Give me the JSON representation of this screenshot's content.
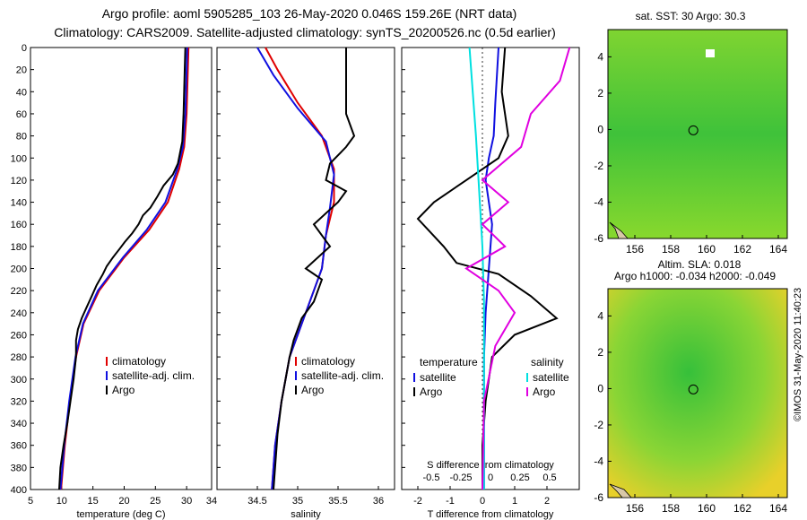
{
  "header": {
    "line1": "Argo profile: aoml 5905285_103 26-May-2020 0.046S 159.26E (NRT data)",
    "line2": "Climatology: CARS2009. Satellite-adjusted climatology: synTS_20200526.nc (0.5d earlier)"
  },
  "side_label": "©IMOS 31-May-2020 11:40:23",
  "colors": {
    "red": "#e00000",
    "blue": "#1010e0",
    "black": "#000000",
    "cyan": "#00e0e0",
    "magenta": "#e000e0"
  },
  "chart_data": [
    {
      "type": "line",
      "panel": "temperature",
      "xlabel": "temperature (deg C)",
      "xlim": [
        5,
        34
      ],
      "ylim": [
        0,
        400
      ],
      "xticks": [
        "5",
        "10",
        "15",
        "20",
        "25",
        "30",
        "34"
      ],
      "yticks": [
        "0",
        "20",
        "40",
        "60",
        "80",
        "100",
        "120",
        "140",
        "160",
        "180",
        "200",
        "220",
        "240",
        "260",
        "280",
        "300",
        "320",
        "340",
        "360",
        "380",
        "400"
      ],
      "legend": [
        "climatology",
        "satellite-adj. clim.",
        "Argo"
      ],
      "series": [
        {
          "name": "climatology",
          "color": "red",
          "points": [
            [
              30.3,
              0
            ],
            [
              30.2,
              20
            ],
            [
              30,
              60
            ],
            [
              29.6,
              90
            ],
            [
              28.8,
              110
            ],
            [
              27,
              140
            ],
            [
              24,
              165
            ],
            [
              20,
              190
            ],
            [
              16,
              220
            ],
            [
              13.5,
              250
            ],
            [
              12.3,
              280
            ],
            [
              11.3,
              320
            ],
            [
              10.5,
              360
            ],
            [
              9.9,
              400
            ]
          ]
        },
        {
          "name": "satellite-adj. clim.",
          "color": "blue",
          "points": [
            [
              30.1,
              0
            ],
            [
              30,
              20
            ],
            [
              29.8,
              60
            ],
            [
              29.4,
              90
            ],
            [
              28.5,
              110
            ],
            [
              26.6,
              140
            ],
            [
              23.6,
              165
            ],
            [
              19.8,
              190
            ],
            [
              15.8,
              220
            ],
            [
              13.4,
              250
            ],
            [
              12.2,
              280
            ],
            [
              11.2,
              320
            ],
            [
              10.4,
              360
            ],
            [
              9.8,
              400
            ]
          ]
        },
        {
          "name": "Argo",
          "color": "black",
          "points": [
            [
              29.8,
              0
            ],
            [
              29.7,
              20
            ],
            [
              29.5,
              60
            ],
            [
              29.3,
              85
            ],
            [
              28.6,
              105
            ],
            [
              27.8,
              115
            ],
            [
              26.3,
              125
            ],
            [
              25.3,
              135
            ],
            [
              24.2,
              145
            ],
            [
              23,
              152
            ],
            [
              22.3,
              160
            ],
            [
              21.3,
              168
            ],
            [
              20.1,
              176
            ],
            [
              19.3,
              182
            ],
            [
              18.2,
              190
            ],
            [
              17.2,
              198
            ],
            [
              16.6,
              205
            ],
            [
              15.6,
              215
            ],
            [
              14.8,
              225
            ],
            [
              14,
              235
            ],
            [
              13.2,
              245
            ],
            [
              12.6,
              255
            ],
            [
              12.3,
              265
            ],
            [
              12.3,
              280
            ],
            [
              11.9,
              300
            ],
            [
              11.4,
              320
            ],
            [
              10.9,
              340
            ],
            [
              10.3,
              360
            ],
            [
              9.8,
              380
            ],
            [
              9.6,
              400
            ]
          ]
        }
      ]
    },
    {
      "type": "line",
      "panel": "salinity",
      "xlabel": "salinity",
      "xlim": [
        34,
        36.2
      ],
      "ylim": [
        0,
        400
      ],
      "xticks": [
        "34.5",
        "35",
        "35.5",
        "36"
      ],
      "legend": [
        "climatology",
        "satellite-adj. clim.",
        "Argo"
      ],
      "series": [
        {
          "name": "climatology",
          "color": "red",
          "points": [
            [
              34.6,
              0
            ],
            [
              34.75,
              20
            ],
            [
              35,
              50
            ],
            [
              35.3,
              80
            ],
            [
              35.45,
              110
            ],
            [
              35.45,
              140
            ],
            [
              35.35,
              170
            ],
            [
              35.3,
              200
            ],
            [
              35.1,
              240
            ],
            [
              34.9,
              280
            ],
            [
              34.8,
              320
            ],
            [
              34.72,
              360
            ],
            [
              34.68,
              400
            ]
          ]
        },
        {
          "name": "satellite-adj. clim.",
          "color": "blue",
          "points": [
            [
              34.5,
              0
            ],
            [
              34.7,
              25
            ],
            [
              35,
              55
            ],
            [
              35.35,
              85
            ],
            [
              35.45,
              115
            ],
            [
              35.4,
              145
            ],
            [
              35.35,
              170
            ],
            [
              35.3,
              200
            ],
            [
              35.1,
              240
            ],
            [
              34.9,
              280
            ],
            [
              34.8,
              320
            ],
            [
              34.72,
              360
            ],
            [
              34.68,
              400
            ]
          ]
        },
        {
          "name": "Argo",
          "color": "black",
          "points": [
            [
              35.6,
              0
            ],
            [
              35.6,
              40
            ],
            [
              35.6,
              60
            ],
            [
              35.7,
              80
            ],
            [
              35.6,
              90
            ],
            [
              35.4,
              105
            ],
            [
              35.35,
              120
            ],
            [
              35.6,
              130
            ],
            [
              35.5,
              140
            ],
            [
              35.2,
              160
            ],
            [
              35.4,
              180
            ],
            [
              35.1,
              200
            ],
            [
              35.3,
              210
            ],
            [
              35.2,
              230
            ],
            [
              35.05,
              245
            ],
            [
              34.95,
              265
            ],
            [
              34.9,
              280
            ],
            [
              34.85,
              300
            ],
            [
              34.8,
              320
            ],
            [
              34.75,
              350
            ],
            [
              34.72,
              380
            ],
            [
              34.7,
              400
            ]
          ]
        }
      ]
    },
    {
      "type": "line",
      "panel": "difference",
      "xlabel": "T difference from climatology",
      "xlabel_top": "S difference from climatology",
      "xlim": [
        -2.5,
        3
      ],
      "ylim": [
        0,
        400
      ],
      "xticks": [
        "-2",
        "-1",
        "0",
        "1",
        "2"
      ],
      "xticks_top": [
        "-0.5",
        "-0.25",
        "0",
        "0.25",
        "0.5"
      ],
      "legend_headers": [
        "temperature",
        "salinity"
      ],
      "legend": [
        "satellite",
        "Argo",
        "satellite",
        "Argo"
      ],
      "series": [
        {
          "name": "temperature satellite",
          "color": "blue",
          "points": [
            [
              0.5,
              0
            ],
            [
              0.4,
              50
            ],
            [
              0.35,
              80
            ],
            [
              0.2,
              100
            ],
            [
              0.1,
              120
            ],
            [
              0.2,
              140
            ],
            [
              0.3,
              160
            ],
            [
              0.2,
              200
            ],
            [
              0.1,
              240
            ],
            [
              0.05,
              280
            ],
            [
              0.05,
              320
            ],
            [
              0.05,
              360
            ],
            [
              0.05,
              400
            ]
          ]
        },
        {
          "name": "temperature Argo",
          "color": "black",
          "points": [
            [
              0.7,
              0
            ],
            [
              0.6,
              40
            ],
            [
              0.8,
              80
            ],
            [
              0.5,
              100
            ],
            [
              -0.5,
              120
            ],
            [
              -1.5,
              140
            ],
            [
              -2,
              155
            ],
            [
              -1.2,
              180
            ],
            [
              -0.8,
              195
            ],
            [
              0.5,
              205
            ],
            [
              1.5,
              225
            ],
            [
              2.3,
              245
            ],
            [
              1,
              260
            ],
            [
              0.3,
              280
            ],
            [
              0.1,
              320
            ],
            [
              0,
              360
            ],
            [
              0,
              400
            ]
          ]
        },
        {
          "name": "salinity satellite",
          "color": "cyan",
          "points": [
            [
              -0.4,
              0
            ],
            [
              -0.3,
              40
            ],
            [
              -0.2,
              80
            ],
            [
              -0.1,
              130
            ],
            [
              0,
              180
            ],
            [
              0.05,
              230
            ],
            [
              0.05,
              280
            ],
            [
              0.05,
              330
            ],
            [
              0.05,
              400
            ]
          ]
        },
        {
          "name": "salinity Argo",
          "color": "magenta",
          "points": [
            [
              2.7,
              0
            ],
            [
              2.4,
              30
            ],
            [
              1.5,
              60
            ],
            [
              1.2,
              90
            ],
            [
              0,
              120
            ],
            [
              0.8,
              140
            ],
            [
              0,
              160
            ],
            [
              0.7,
              180
            ],
            [
              -0.5,
              200
            ],
            [
              0.5,
              220
            ],
            [
              1,
              240
            ],
            [
              0.4,
              270
            ],
            [
              0.05,
              320
            ],
            [
              0,
              400
            ]
          ]
        }
      ]
    },
    {
      "type": "heatmap",
      "panel": "sst_map",
      "title": "sat. SST: 30 Argo: 30.3",
      "xlim": [
        154.5,
        164.5
      ],
      "ylim": [
        -6,
        5.5
      ],
      "xticks": [
        "156",
        "158",
        "160",
        "162",
        "164"
      ],
      "yticks": [
        "4",
        "2",
        "0",
        "-2",
        "-4",
        "-6"
      ],
      "marker": {
        "lon": 159.26,
        "lat": -0.046
      }
    },
    {
      "type": "heatmap",
      "panel": "sla_map",
      "title": "Altim. SLA: 0.018",
      "subtitle": "Argo h1000: -0.034 h2000: -0.049",
      "xlim": [
        154.5,
        164.5
      ],
      "ylim": [
        -6,
        5.5
      ],
      "xticks": [
        "156",
        "158",
        "160",
        "162",
        "164"
      ],
      "yticks": [
        "4",
        "2",
        "0",
        "-2",
        "-4",
        "-6"
      ],
      "marker": {
        "lon": 159.26,
        "lat": -0.046
      }
    }
  ]
}
